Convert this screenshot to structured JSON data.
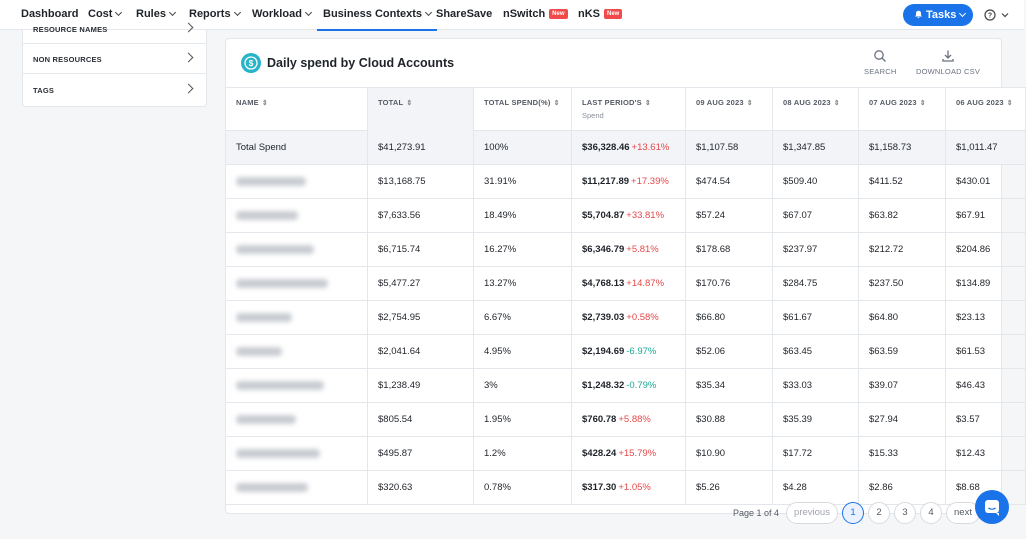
{
  "nav": {
    "items": [
      {
        "label": "Dashboard",
        "dropdown": false
      },
      {
        "label": "Cost",
        "dropdown": true
      },
      {
        "label": "Rules",
        "dropdown": true
      },
      {
        "label": "Reports",
        "dropdown": true
      },
      {
        "label": "Workload",
        "dropdown": true
      },
      {
        "label": "Business Contexts",
        "dropdown": true,
        "active": true
      },
      {
        "label": "ShareSave",
        "dropdown": false
      },
      {
        "label": "nSwitch",
        "badge": "New"
      },
      {
        "label": "nKS",
        "badge": "New"
      }
    ],
    "tasks_label": "Tasks"
  },
  "filters": [
    {
      "label": "RESOURCE NAMES"
    },
    {
      "label": "NON RESOURCES"
    },
    {
      "label": "TAGS"
    }
  ],
  "card": {
    "title": "Daily spend by Cloud Accounts",
    "search_label": "SEARCH",
    "download_label": "DOWNLOAD CSV"
  },
  "table": {
    "headers": {
      "name": "NAME",
      "total": "TOTAL",
      "total_pct": "TOTAL SPEND(%)",
      "last_period": "LAST PERIOD'S",
      "last_period_sub": "Spend",
      "d1": "09 AUG 2023",
      "d2": "08 AUG 2023",
      "d3": "07 AUG 2023",
      "d4": "06 AUG 2023"
    },
    "total_row": {
      "name": "Total Spend",
      "total": "$41,273.91",
      "pct": "100%",
      "last": "$36,328.46",
      "change": "+13.61%",
      "d1": "$1,107.58",
      "d2": "$1,347.85",
      "d3": "$1,158.73",
      "d4": "$1,011.47"
    },
    "rows": [
      {
        "total": "$13,168.75",
        "pct": "31.91%",
        "last": "$11,217.89",
        "change": "+17.39%",
        "dir": "up",
        "d1": "$474.54",
        "d2": "$509.40",
        "d3": "$411.52",
        "d4": "$430.01"
      },
      {
        "total": "$7,633.56",
        "pct": "18.49%",
        "last": "$5,704.87",
        "change": "+33.81%",
        "dir": "up",
        "d1": "$57.24",
        "d2": "$67.07",
        "d3": "$63.82",
        "d4": "$67.91"
      },
      {
        "total": "$6,715.74",
        "pct": "16.27%",
        "last": "$6,346.79",
        "change": "+5.81%",
        "dir": "up",
        "d1": "$178.68",
        "d2": "$237.97",
        "d3": "$212.72",
        "d4": "$204.86"
      },
      {
        "total": "$5,477.27",
        "pct": "13.27%",
        "last": "$4,768.13",
        "change": "+14.87%",
        "dir": "up",
        "d1": "$170.76",
        "d2": "$284.75",
        "d3": "$237.50",
        "d4": "$134.89"
      },
      {
        "total": "$2,754.95",
        "pct": "6.67%",
        "last": "$2,739.03",
        "change": "+0.58%",
        "dir": "up",
        "d1": "$66.80",
        "d2": "$61.67",
        "d3": "$64.80",
        "d4": "$23.13"
      },
      {
        "total": "$2,041.64",
        "pct": "4.95%",
        "last": "$2,194.69",
        "change": "-6.97%",
        "dir": "down",
        "d1": "$52.06",
        "d2": "$63.45",
        "d3": "$63.59",
        "d4": "$61.53"
      },
      {
        "total": "$1,238.49",
        "pct": "3%",
        "last": "$1,248.32",
        "change": "-0.79%",
        "dir": "down",
        "d1": "$35.34",
        "d2": "$33.03",
        "d3": "$39.07",
        "d4": "$46.43"
      },
      {
        "total": "$805.54",
        "pct": "1.95%",
        "last": "$760.78",
        "change": "+5.88%",
        "dir": "up",
        "d1": "$30.88",
        "d2": "$35.39",
        "d3": "$27.94",
        "d4": "$3.57"
      },
      {
        "total": "$495.87",
        "pct": "1.2%",
        "last": "$428.24",
        "change": "+15.79%",
        "dir": "up",
        "d1": "$10.90",
        "d2": "$17.72",
        "d3": "$15.33",
        "d4": "$12.43"
      },
      {
        "total": "$320.63",
        "pct": "0.78%",
        "last": "$317.30",
        "change": "+1.05%",
        "dir": "up",
        "d1": "$5.26",
        "d2": "$4.28",
        "d3": "$2.86",
        "d4": "$8.68"
      }
    ]
  },
  "pagination": {
    "info": "Page 1 of 4",
    "previous": "previous",
    "next": "next",
    "pages": [
      "1",
      "2",
      "3",
      "4"
    ],
    "current": "1"
  },
  "colors": {
    "accent": "#1a73e8",
    "increase": "#e54848",
    "decrease": "#1aa998",
    "title_icon": "#27b4c8"
  }
}
